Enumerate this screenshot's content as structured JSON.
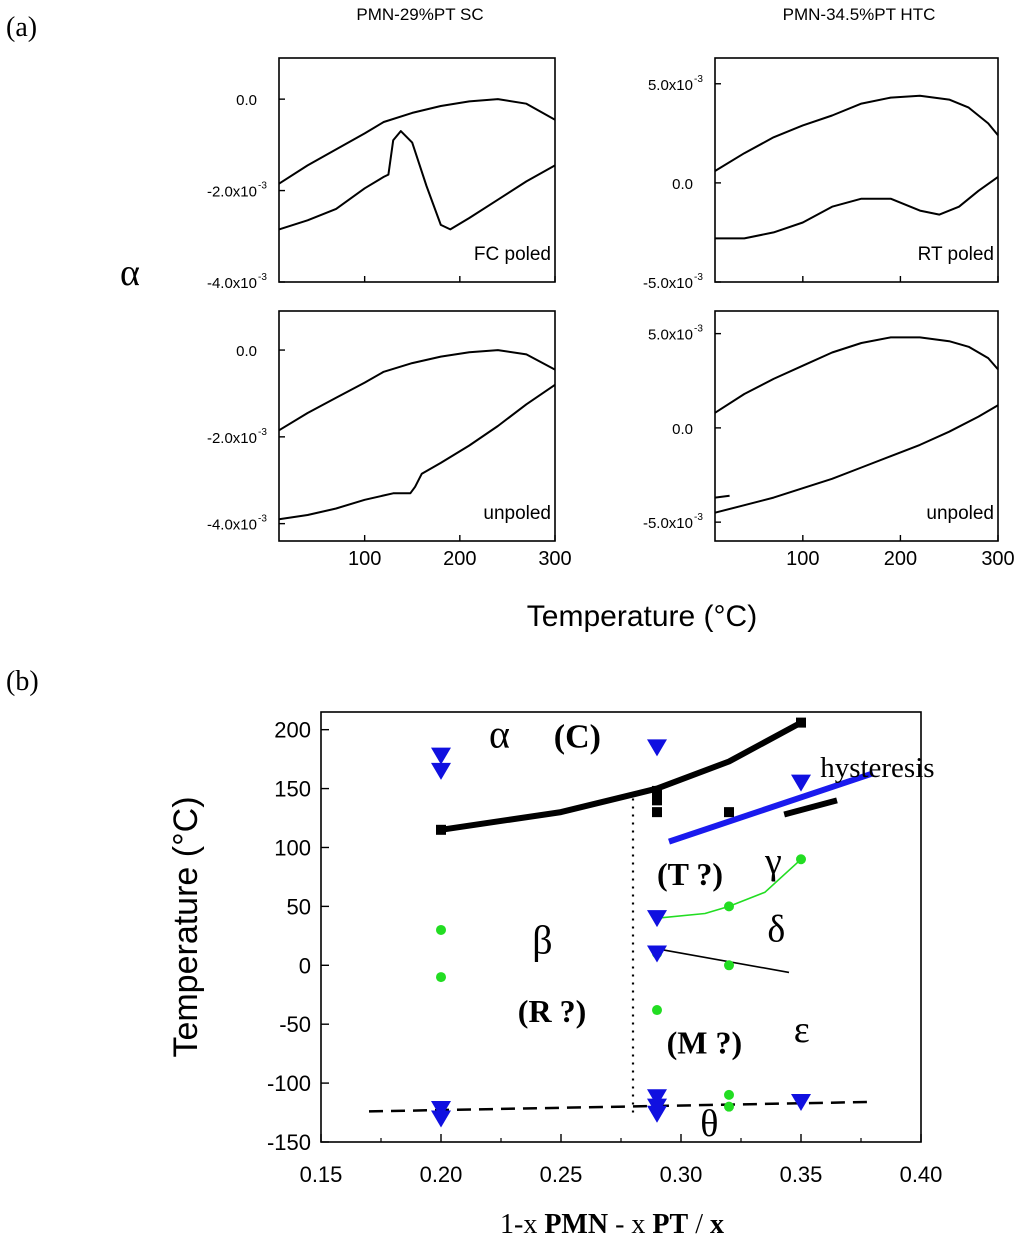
{
  "panel_a": {
    "label": "(a)",
    "col_titles": [
      "PMN-29%PT SC",
      "PMN-34.5%PT HTC"
    ],
    "y_symbol": "α",
    "x_label": "Temperature (°C)"
  },
  "panel_b": {
    "label": "(b)"
  },
  "chart_data": [
    {
      "id": "a-top-left",
      "type": "line",
      "title": "PMN-29%PT SC",
      "annotation": "FC poled",
      "xlabel": "Temperature (°C)",
      "ylabel": "α",
      "xlim": [
        10,
        300
      ],
      "ylim": [
        -0.004,
        0.0009
      ],
      "xticks": [
        100,
        200,
        300
      ],
      "xtick_labels": [
        "100",
        "200",
        "300"
      ],
      "show_xtick_labels": false,
      "ytick_labels": [
        {
          "value": 0.0,
          "base": "0.0",
          "exp": ""
        },
        {
          "value": -0.002,
          "base": "-2.0x10",
          "exp": "-3"
        },
        {
          "value": -0.004,
          "base": "-4.0x10",
          "exp": "-3"
        }
      ],
      "series": [
        {
          "name": "upper",
          "x": [
            10,
            40,
            70,
            100,
            120,
            150,
            180,
            210,
            240,
            270,
            300
          ],
          "y": [
            -0.00185,
            -0.00145,
            -0.0011,
            -0.00075,
            -0.0005,
            -0.0003,
            -0.00015,
            -5e-05,
            0.0,
            -0.0001,
            -0.00045
          ]
        },
        {
          "name": "lower",
          "x": [
            10,
            40,
            70,
            100,
            120,
            125,
            130,
            138,
            150,
            165,
            180,
            190,
            210,
            240,
            270,
            300
          ],
          "y": [
            -0.00285,
            -0.00265,
            -0.0024,
            -0.00195,
            -0.0017,
            -0.00165,
            -0.0009,
            -0.0007,
            -0.00095,
            -0.0019,
            -0.00275,
            -0.00285,
            -0.0026,
            -0.0022,
            -0.0018,
            -0.00145
          ]
        }
      ]
    },
    {
      "id": "a-top-right",
      "type": "line",
      "title": "PMN-34.5%PT HTC",
      "annotation": "RT poled",
      "xlabel": "Temperature (°C)",
      "ylabel": "α",
      "xlim": [
        10,
        300
      ],
      "ylim": [
        -0.005,
        0.0063
      ],
      "xticks": [
        100,
        200,
        300
      ],
      "xtick_labels": [
        "100",
        "200",
        "300"
      ],
      "show_xtick_labels": false,
      "ytick_labels": [
        {
          "value": 0.005,
          "base": "5.0x10",
          "exp": "-3"
        },
        {
          "value": 0.0,
          "base": "0.0",
          "exp": ""
        },
        {
          "value": -0.005,
          "base": "-5.0x10",
          "exp": "-3"
        }
      ],
      "series": [
        {
          "name": "upper",
          "x": [
            10,
            40,
            70,
            100,
            130,
            160,
            190,
            220,
            250,
            270,
            290,
            300
          ],
          "y": [
            0.0006,
            0.0015,
            0.0023,
            0.0029,
            0.0034,
            0.004,
            0.0043,
            0.0044,
            0.0042,
            0.0038,
            0.003,
            0.0024
          ]
        },
        {
          "name": "lower",
          "x": [
            10,
            40,
            70,
            100,
            130,
            160,
            190,
            220,
            240,
            260,
            280,
            300
          ],
          "y": [
            -0.0028,
            -0.0028,
            -0.0025,
            -0.002,
            -0.0012,
            -0.0008,
            -0.0008,
            -0.0014,
            -0.0016,
            -0.0012,
            -0.0004,
            0.0003
          ]
        }
      ]
    },
    {
      "id": "a-bottom-left",
      "type": "line",
      "title": "",
      "annotation": "unpoled",
      "xlabel": "Temperature (°C)",
      "ylabel": "α",
      "xlim": [
        10,
        300
      ],
      "ylim": [
        -0.0044,
        0.0009
      ],
      "xticks": [
        100,
        200,
        300
      ],
      "xtick_labels": [
        "100",
        "200",
        "300"
      ],
      "show_xtick_labels": true,
      "ytick_labels": [
        {
          "value": 0.0,
          "base": "0.0",
          "exp": ""
        },
        {
          "value": -0.002,
          "base": "-2.0x10",
          "exp": "-3"
        },
        {
          "value": -0.004,
          "base": "-4.0x10",
          "exp": "-3"
        }
      ],
      "series": [
        {
          "name": "upper",
          "x": [
            10,
            40,
            70,
            100,
            120,
            150,
            180,
            210,
            240,
            270,
            300
          ],
          "y": [
            -0.00185,
            -0.00145,
            -0.0011,
            -0.00075,
            -0.0005,
            -0.0003,
            -0.00015,
            -5e-05,
            0.0,
            -0.0001,
            -0.00045
          ]
        },
        {
          "name": "lower",
          "x": [
            10,
            40,
            70,
            100,
            130,
            148,
            153,
            160,
            180,
            210,
            240,
            270,
            300
          ],
          "y": [
            -0.0039,
            -0.0038,
            -0.00365,
            -0.00345,
            -0.0033,
            -0.0033,
            -0.00315,
            -0.00285,
            -0.0026,
            -0.0022,
            -0.00175,
            -0.00125,
            -0.0008
          ]
        }
      ]
    },
    {
      "id": "a-bottom-right",
      "type": "line",
      "title": "",
      "annotation": "unpoled",
      "xlabel": "Temperature (°C)",
      "ylabel": "α",
      "xlim": [
        10,
        300
      ],
      "ylim": [
        -0.006,
        0.0062
      ],
      "xticks": [
        100,
        200,
        300
      ],
      "xtick_labels": [
        "100",
        "200",
        "300"
      ],
      "show_xtick_labels": true,
      "ytick_labels": [
        {
          "value": 0.005,
          "base": "5.0x10",
          "exp": "-3"
        },
        {
          "value": 0.0,
          "base": "0.0",
          "exp": ""
        },
        {
          "value": -0.005,
          "base": "-5.0x10",
          "exp": "-3"
        }
      ],
      "series": [
        {
          "name": "upper",
          "x": [
            10,
            40,
            70,
            100,
            130,
            160,
            190,
            220,
            250,
            270,
            290,
            300
          ],
          "y": [
            0.0008,
            0.0018,
            0.0026,
            0.0033,
            0.004,
            0.0045,
            0.0048,
            0.0048,
            0.0046,
            0.0043,
            0.0037,
            0.0031
          ]
        },
        {
          "name": "lower-start",
          "x": [
            10,
            25
          ],
          "y": [
            -0.0037,
            -0.0036
          ]
        },
        {
          "name": "lower",
          "x": [
            10,
            40,
            70,
            100,
            130,
            160,
            190,
            220,
            250,
            280,
            300
          ],
          "y": [
            -0.0045,
            -0.0041,
            -0.0037,
            -0.0032,
            -0.0027,
            -0.0021,
            -0.0015,
            -0.0009,
            -0.0002,
            0.0006,
            0.0012
          ]
        }
      ]
    },
    {
      "id": "b-phase-diagram",
      "type": "scatter",
      "title": "",
      "xlabel": "1-x  PMN - x PT / x",
      "xlabel_parts": [
        {
          "text": "1-x  ",
          "bold": false
        },
        {
          "text": "PMN",
          "bold": true
        },
        {
          "text": " - x ",
          "bold": false
        },
        {
          "text": "PT",
          "bold": true
        },
        {
          "text": " / ",
          "bold": false
        },
        {
          "text": "x",
          "bold": true
        }
      ],
      "ylabel": "Temperature (°C)",
      "xlim": [
        0.15,
        0.4
      ],
      "ylim": [
        -150,
        215
      ],
      "xticks": [
        0.15,
        0.2,
        0.25,
        0.3,
        0.35,
        0.4
      ],
      "xtick_labels": [
        "0.15",
        "0.20",
        "0.25",
        "0.30",
        "0.35",
        "0.40"
      ],
      "yticks": [
        -150,
        -100,
        -50,
        0,
        50,
        100,
        150,
        200
      ],
      "ytick_labels": [
        "-150",
        "-100",
        "-50",
        "0",
        "50",
        "100",
        "150",
        "200"
      ],
      "triangles": {
        "color": "#1010e0",
        "x": [
          0.2,
          0.2,
          0.2,
          0.2,
          0.29,
          0.29,
          0.29,
          0.29,
          0.29,
          0.29,
          0.35,
          0.35
        ],
        "y": [
          178,
          165,
          -122,
          -130,
          185,
          40,
          10,
          -112,
          -120,
          -126,
          155,
          -116
        ]
      },
      "dots": {
        "color": "#22dd22",
        "x": [
          0.2,
          0.2,
          0.29,
          0.29,
          0.32,
          0.32,
          0.32,
          0.32,
          0.35
        ],
        "y": [
          30,
          -10,
          10,
          -38,
          50,
          0,
          -110,
          -120,
          90
        ]
      },
      "squares": {
        "color": "#000000",
        "x": [
          0.2,
          0.29,
          0.29,
          0.29,
          0.32,
          0.35
        ],
        "y": [
          115,
          148,
          140,
          130,
          130,
          206
        ]
      },
      "boundaries": [
        {
          "name": "upper-phase-line",
          "color": "#000000",
          "style": "solid-thick",
          "x": [
            0.2,
            0.25,
            0.29,
            0.32,
            0.35
          ],
          "y": [
            115,
            130,
            150,
            173,
            206
          ]
        },
        {
          "name": "hysteresis-line",
          "color": "#1a1aee",
          "style": "solid-thick",
          "x": [
            0.295,
            0.38
          ],
          "y": [
            105,
            163
          ]
        },
        {
          "name": "small-black-segment",
          "color": "#000000",
          "style": "solid-thick",
          "x": [
            0.343,
            0.365
          ],
          "y": [
            128,
            140
          ]
        },
        {
          "name": "gamma-green-curve",
          "color": "#22dd22",
          "style": "solid-thin",
          "x": [
            0.29,
            0.31,
            0.32,
            0.335,
            0.35
          ],
          "y": [
            40,
            44,
            50,
            62,
            90
          ]
        },
        {
          "name": "delta-line",
          "color": "#000000",
          "style": "solid-thin",
          "x": [
            0.29,
            0.345
          ],
          "y": [
            14,
            -6
          ]
        },
        {
          "name": "low-temperature-dashed",
          "color": "#000000",
          "style": "dashed",
          "x": [
            0.17,
            0.38
          ],
          "y": [
            -124,
            -116
          ]
        },
        {
          "name": "vertical-dotted",
          "color": "#000000",
          "style": "dotted",
          "x": [
            0.28,
            0.28
          ],
          "y": [
            -125,
            142
          ]
        }
      ],
      "phase_labels": [
        {
          "text": "α",
          "x": 0.22,
          "y": 185,
          "size": 40,
          "bold": false
        },
        {
          "text": "(C)",
          "x": 0.247,
          "y": 185,
          "size": 34,
          "bold": true
        },
        {
          "text": "hysteresis",
          "x": 0.358,
          "y": 160,
          "size": 29,
          "bold": false
        },
        {
          "text": "(T ?)",
          "x": 0.29,
          "y": 68,
          "size": 32,
          "bold": true
        },
        {
          "text": "γ",
          "x": 0.335,
          "y": 78,
          "size": 38,
          "bold": false
        },
        {
          "text": "δ",
          "x": 0.336,
          "y": 20,
          "size": 38,
          "bold": false
        },
        {
          "text": "β",
          "x": 0.238,
          "y": 10,
          "size": 40,
          "bold": false
        },
        {
          "text": "(R ?)",
          "x": 0.232,
          "y": -48,
          "size": 32,
          "bold": true
        },
        {
          "text": "(M ?)",
          "x": 0.294,
          "y": -75,
          "size": 32,
          "bold": true
        },
        {
          "text": "ε",
          "x": 0.347,
          "y": -65,
          "size": 38,
          "bold": false
        },
        {
          "text": "θ",
          "x": 0.308,
          "y": -145,
          "size": 38,
          "bold": false
        }
      ]
    }
  ]
}
